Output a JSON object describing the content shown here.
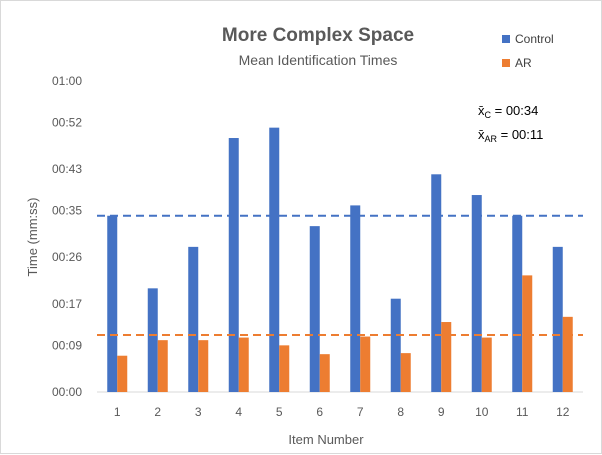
{
  "chart_data": {
    "type": "bar",
    "title": "More Complex Space",
    "subtitle": "Mean Identification Times",
    "xlabel": "Item Number",
    "ylabel": "Time (mm:ss)",
    "categories": [
      "1",
      "2",
      "3",
      "4",
      "5",
      "6",
      "7",
      "8",
      "9",
      "10",
      "11",
      "12"
    ],
    "y_ticks": [
      "00:00",
      "00:09",
      "00:17",
      "00:26",
      "00:35",
      "00:43",
      "00:52",
      "01:00"
    ],
    "ylim_seconds": [
      0,
      60
    ],
    "y_unit": "seconds",
    "series": [
      {
        "name": "Control",
        "color": "#4472c4",
        "values": [
          34,
          20,
          28,
          49,
          51,
          32,
          36,
          18,
          42,
          38,
          34,
          28
        ]
      },
      {
        "name": "AR",
        "color": "#ed7d31",
        "values": [
          7,
          10,
          10,
          10.5,
          9,
          7.3,
          10.7,
          7.5,
          13.5,
          10.5,
          22.5,
          14.5
        ]
      }
    ],
    "mean_lines": [
      {
        "series": "Control",
        "value_seconds": 34,
        "style": "dashed",
        "color": "#4472c4"
      },
      {
        "series": "AR",
        "value_seconds": 11,
        "style": "dashed",
        "color": "#ed7d31"
      }
    ],
    "annotations": [
      {
        "symbol": "x̄",
        "subscript": "C",
        "text": " = 00:34"
      },
      {
        "symbol": "x̄",
        "subscript": "AR",
        "text": " = 00:11"
      }
    ],
    "legend_position": "top-right",
    "grid": false
  }
}
